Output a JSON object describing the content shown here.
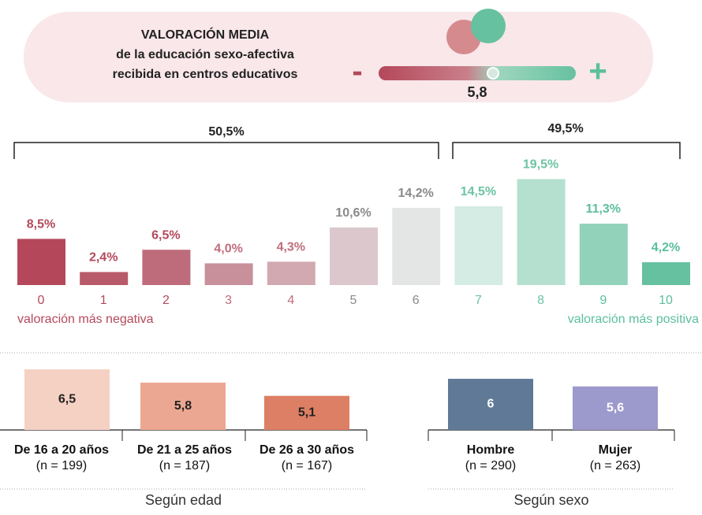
{
  "header": {
    "title_lines": [
      "VALORACIÓN MEDIA",
      "de la educación sexo-afectiva",
      "recibida en centros educativos"
    ],
    "scale": {
      "min_label": "-",
      "max_label": "+",
      "value": 5.8,
      "value_label": "5,8",
      "xlim": [
        0,
        10
      ]
    }
  },
  "chart_data": [
    {
      "type": "bar",
      "categories": [
        "0",
        "1",
        "2",
        "3",
        "4",
        "5",
        "6",
        "7",
        "8",
        "9",
        "10"
      ],
      "values": [
        8.5,
        2.4,
        6.5,
        4.0,
        4.3,
        10.6,
        14.2,
        14.5,
        19.5,
        11.3,
        4.2
      ],
      "value_labels": [
        "8,5%",
        "2,4%",
        "6,5%",
        "4,0%",
        "4,3%",
        "10,6%",
        "14,2%",
        "14,5%",
        "19,5%",
        "11,3%",
        "4,2%"
      ],
      "colors": [
        "#b4485a",
        "#b85a6a",
        "#be6c7b",
        "#c7909a",
        "#d2a9b0",
        "#dcc8cc",
        "#e4e6e6",
        "#d4ece3",
        "#b5e0cf",
        "#92d2ba",
        "#66c1a0"
      ],
      "label_colors": [
        "#b4485a",
        "#b4485a",
        "#b4485a",
        "#c06d7c",
        "#c06d7c",
        "#8a8a8a",
        "#8a8a8a",
        "#6cc4a3",
        "#6cc4a3",
        "#5cbf9c",
        "#5cbf9c"
      ],
      "ylim": [
        0,
        20
      ],
      "brackets": [
        {
          "value": 50.5,
          "label": "50,5%"
        },
        {
          "value": 49.5,
          "label": "49,5%"
        }
      ],
      "annotations": [
        "valoración más negativa",
        "valoración más positiva"
      ]
    },
    {
      "type": "bar",
      "title": "Según edad",
      "categories": [
        "De 16 a 20 años",
        "De 21 a 25 años",
        "De 26 a 30 años"
      ],
      "sample_labels": [
        "(n = 199)",
        "(n = 187)",
        "(n = 167)"
      ],
      "values": [
        6.5,
        5.8,
        5.1
      ],
      "value_labels": [
        "6,5",
        "5,8",
        "5,1"
      ],
      "colors": [
        "#f5d1c3",
        "#eca792",
        "#dd7f64"
      ],
      "ylim": [
        3.3,
        7
      ]
    },
    {
      "type": "bar",
      "title": "Según sexo",
      "categories": [
        "Hombre",
        "Mujer"
      ],
      "sample_labels": [
        "(n = 290)",
        "(n = 263)"
      ],
      "values": [
        6,
        5.6
      ],
      "value_labels": [
        "6",
        "5,6"
      ],
      "colors": [
        "#5f7997",
        "#9c99cc"
      ],
      "ylim": [
        3.3,
        7
      ]
    }
  ]
}
